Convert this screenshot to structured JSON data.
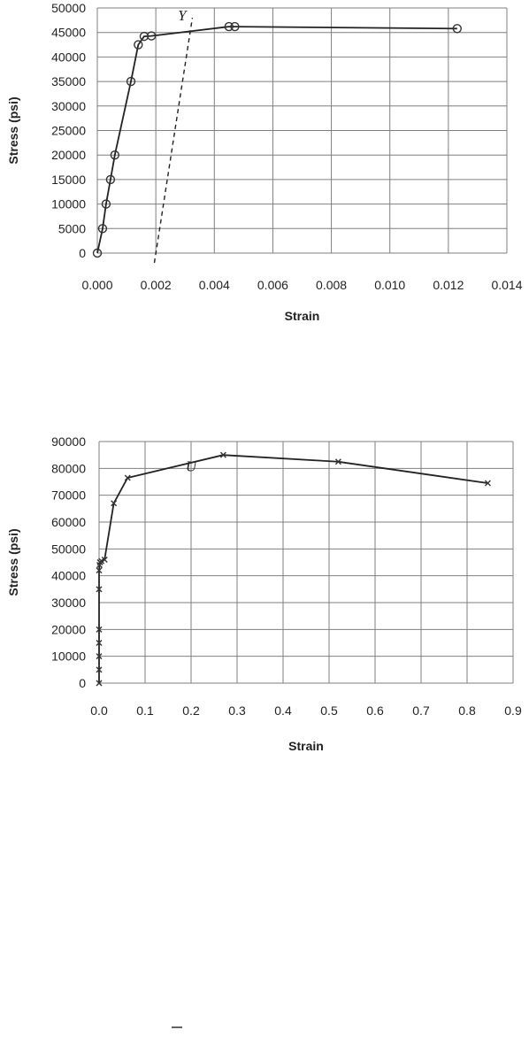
{
  "chart_data": [
    {
      "type": "scatter",
      "title": "",
      "xlabel": "Strain",
      "ylabel": "Stress (psi)",
      "xlim": [
        0,
        0.014
      ],
      "ylim": [
        0,
        50000
      ],
      "x_ticks": [
        "0.000",
        "0.002",
        "0.004",
        "0.006",
        "0.008",
        "0.010",
        "0.012",
        "0.014"
      ],
      "y_ticks": [
        "0",
        "5000",
        "10000",
        "15000",
        "20000",
        "25000",
        "30000",
        "35000",
        "40000",
        "45000",
        "50000"
      ],
      "grid": true,
      "marker": "circle",
      "series": [
        {
          "x": [
            0.0,
            0.00018,
            0.0003,
            0.00045,
            0.0006,
            0.00115,
            0.0014,
            0.0016,
            0.00185,
            0.0045,
            0.0047,
            0.0123
          ],
          "y": [
            0,
            5000,
            10000,
            15000,
            20000,
            35000,
            42500,
            44200,
            44300,
            46200,
            46200,
            45800
          ]
        }
      ],
      "offset_line": {
        "x": [
          0.00195,
          0.00325
        ],
        "y": [
          -2000,
          48000
        ]
      },
      "annotation": {
        "text": "Y",
        "x": 0.0029,
        "y": 47500
      }
    },
    {
      "type": "scatter",
      "title": "",
      "xlabel": "Strain",
      "ylabel": "Stress (psi)",
      "xlim": [
        0,
        0.9
      ],
      "ylim": [
        0,
        90000
      ],
      "x_ticks": [
        "0.0",
        "0.1",
        "0.2",
        "0.3",
        "0.4",
        "0.5",
        "0.6",
        "0.7",
        "0.8",
        "0.9"
      ],
      "y_ticks": [
        "0",
        "10000",
        "20000",
        "30000",
        "40000",
        "50000",
        "60000",
        "70000",
        "80000",
        "90000"
      ],
      "grid": true,
      "marker": "x",
      "series": [
        {
          "x": [
            0.0,
            0.0,
            0.0,
            0.0,
            0.0,
            0.0,
            0.0,
            0.001,
            0.002,
            0.005,
            0.012,
            0.032,
            0.062,
            0.27,
            0.52,
            0.845
          ],
          "y": [
            0,
            5000,
            10000,
            15000,
            20000,
            35000,
            42000,
            44000,
            45000,
            45500,
            46000,
            67000,
            76500,
            85000,
            82500,
            74500
          ]
        }
      ],
      "annotation": {
        "text": "U",
        "x": 0.2,
        "y": 79000
      }
    }
  ]
}
